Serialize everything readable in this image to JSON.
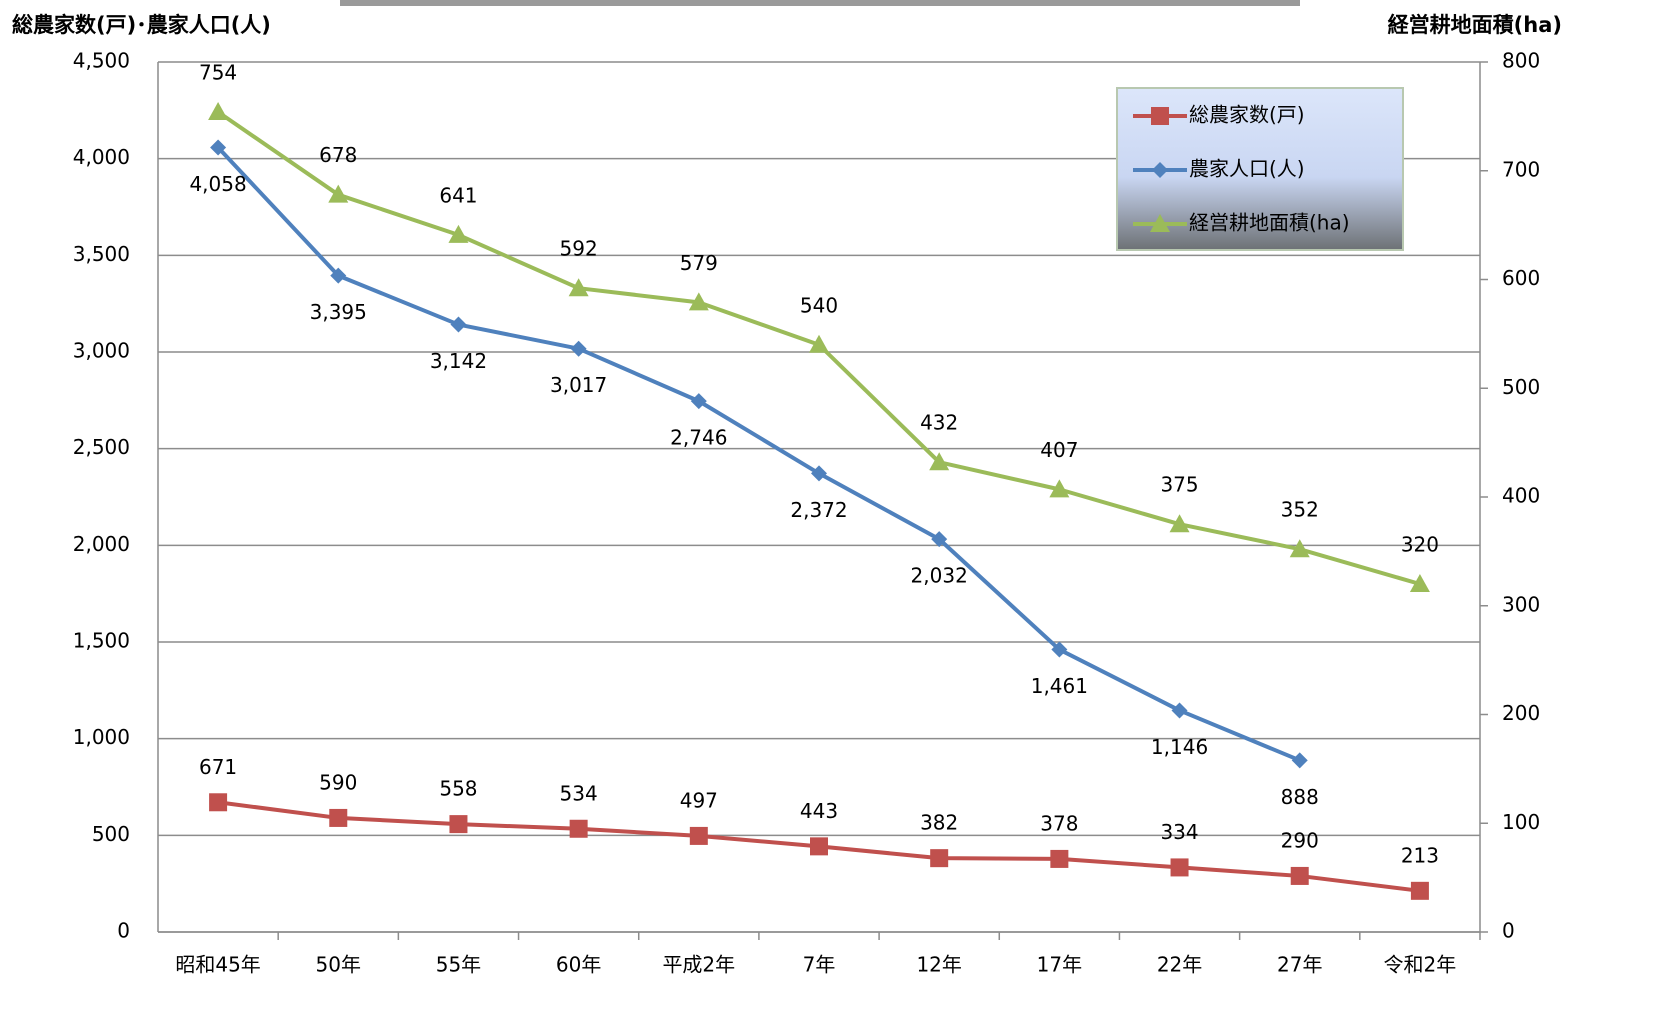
{
  "chart_data": {
    "type": "line",
    "y_label": "総農家数(戸)･農家人口(人)",
    "y2_label": "経営耕地面積(ha)",
    "categories": [
      "昭和45年",
      "50年",
      "55年",
      "60年",
      "平成2年",
      "7年",
      "12年",
      "17年",
      "22年",
      "27年",
      "令和2年"
    ],
    "series": [
      {
        "name": "総農家数(戸)",
        "color": "#c0504d",
        "marker": "square",
        "values": [
          671,
          590,
          558,
          534,
          497,
          443,
          382,
          378,
          334,
          290,
          213
        ]
      },
      {
        "name": "農家人口(人)",
        "color": "#4f81bd",
        "marker": "diamond",
        "values": [
          4058,
          3395,
          3142,
          3017,
          2746,
          2372,
          2032,
          1461,
          1146,
          888,
          null
        ],
        "value_labels": [
          "4,058",
          "3,395",
          "3,142",
          "3,017",
          "2,746",
          "2,372",
          "2,032",
          "1,461",
          "1,146",
          "888",
          null
        ]
      },
      {
        "name": "経営耕地面積(ha)",
        "color": "#9bbb59",
        "marker": "triangle",
        "axis": "y2",
        "values": [
          754,
          678,
          641,
          592,
          579,
          540,
          432,
          407,
          375,
          352,
          320
        ]
      }
    ],
    "ylim": [
      0,
      4500
    ],
    "yticks": [
      0,
      500,
      {
        "value": 1000,
        "label": "1,000"
      },
      {
        "value": 1500,
        "label": "1,500"
      },
      {
        "value": 2000,
        "label": "2,000"
      },
      {
        "value": 2500,
        "label": "2,500"
      },
      {
        "value": 3000,
        "label": "3,000"
      },
      {
        "value": 3500,
        "label": "3,500"
      },
      {
        "value": 4000,
        "label": "4,000"
      },
      {
        "value": 4500,
        "label": "4,500"
      }
    ],
    "y2lim": [
      0,
      800
    ],
    "y2ticks": [
      0,
      100,
      200,
      300,
      400,
      500,
      600,
      700,
      800
    ],
    "grid": true,
    "legend": "top-right"
  }
}
